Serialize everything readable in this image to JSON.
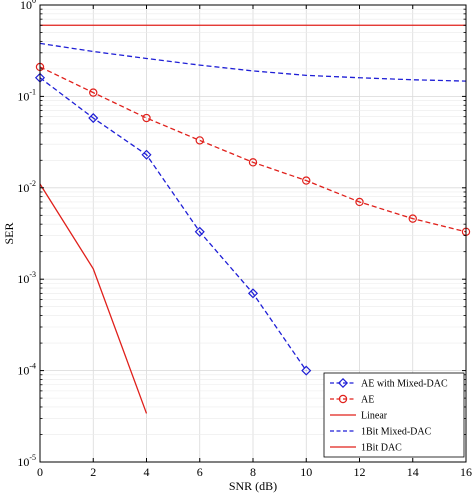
{
  "chart_data": {
    "type": "line",
    "title": "",
    "xlabel": "SNR (dB)",
    "ylabel": "SER",
    "xlim": [
      0,
      16
    ],
    "ylim": [
      1e-05,
      1
    ],
    "yscale": "log",
    "grid": true,
    "legend_position": "bottom-right",
    "xticks": [
      0,
      2,
      4,
      6,
      8,
      10,
      12,
      14,
      16
    ],
    "xtick_labels": [
      "0",
      "2",
      "4",
      "6",
      "8",
      "10",
      "12",
      "14",
      "16"
    ],
    "yticks": [
      {
        "base": "10",
        "exp": "0",
        "value": 1
      },
      {
        "base": "10",
        "exp": "-1",
        "value": 0.1
      },
      {
        "base": "10",
        "exp": "-2",
        "value": 0.01
      },
      {
        "base": "10",
        "exp": "-3",
        "value": 0.001
      },
      {
        "base": "10",
        "exp": "-4",
        "value": 0.0001
      },
      {
        "base": "10",
        "exp": "-5",
        "value": 1e-05
      }
    ],
    "series": [
      {
        "name": "AE with Mixed-DAC",
        "color": "#1f1fd6",
        "dash": "dashed",
        "marker": "diamond",
        "x": [
          0,
          2,
          4,
          6,
          8,
          10
        ],
        "y": [
          0.16,
          0.058,
          0.023,
          0.0033,
          0.0007,
          0.0001
        ]
      },
      {
        "name": "AE",
        "color": "#e0201b",
        "dash": "dashed",
        "marker": "circle",
        "x": [
          0,
          2,
          4,
          6,
          8,
          10,
          12,
          14,
          16
        ],
        "y": [
          0.21,
          0.11,
          0.058,
          0.033,
          0.019,
          0.012,
          0.007,
          0.0046,
          0.0033
        ]
      },
      {
        "name": "Linear",
        "color": "#e0201b",
        "dash": "solid",
        "marker": "none",
        "x": [
          0,
          2,
          4
        ],
        "y": [
          0.011,
          0.0013,
          3.4e-05
        ]
      },
      {
        "name": "1Bit Mixed-DAC",
        "color": "#1f1fd6",
        "dash": "dashed",
        "marker": "none",
        "x": [
          0,
          2,
          4,
          6,
          8,
          10,
          12,
          14,
          16
        ],
        "y": [
          0.38,
          0.31,
          0.26,
          0.22,
          0.19,
          0.17,
          0.16,
          0.152,
          0.147
        ]
      },
      {
        "name": "1Bit DAC",
        "color": "#e0201b",
        "dash": "solid",
        "marker": "none",
        "x": [
          0,
          16
        ],
        "y": [
          0.6,
          0.6
        ]
      }
    ]
  }
}
